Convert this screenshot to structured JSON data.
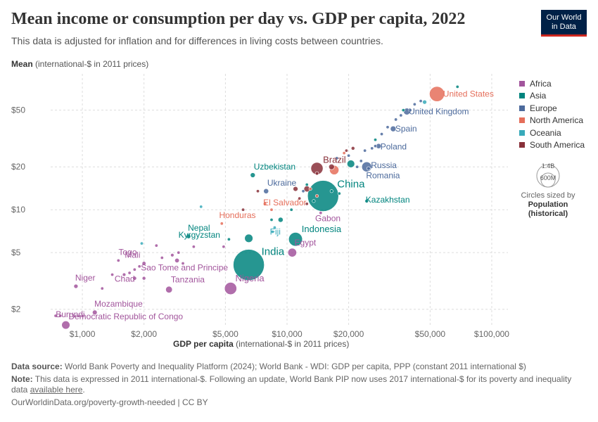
{
  "header": {
    "title": "Mean income or consumption per day vs. GDP per capita, 2022",
    "subtitle": "This data is adjusted for inflation and for differences in living costs between countries.",
    "logo_line1": "Our World",
    "logo_line2": "in Data"
  },
  "axes": {
    "y_label_bold": "Mean",
    "y_label_rest": " (international-$ in 2011 prices)",
    "x_label_bold": "GDP per capita",
    "x_label_rest": " (international-$ in 2011 prices)"
  },
  "legend": {
    "items": [
      {
        "label": "Africa",
        "color": "#a2559c"
      },
      {
        "label": "Asia",
        "color": "#00847e"
      },
      {
        "label": "Europe",
        "color": "#4c6a9c"
      },
      {
        "label": "North America",
        "color": "#e56e5a"
      },
      {
        "label": "Oceania",
        "color": "#38aaba"
      },
      {
        "label": "South America",
        "color": "#883039"
      }
    ],
    "size_big": "1.4B",
    "size_small": "600M",
    "size_note": "Circles sized by",
    "size_note_bold1": "Population",
    "size_note_bold2": "(historical)"
  },
  "footer": {
    "source_label": "Data source:",
    "source_text": " World Bank Poverty and Inequality Platform (2024); World Bank - WDI: GDP per capita, PPP (constant 2011 international $)",
    "note_label": "Note:",
    "note_text": " This data is expressed in 2011 international-$. Following an update, World Bank PIP now uses 2017 international-$ for its poverty and inequality data ",
    "note_link": "available here",
    "note_end": ".",
    "url": "OurWorldinData.org/poverty-growth-needed | CC BY"
  },
  "chart_data": {
    "type": "scatter",
    "title": "Mean income or consumption per day vs. GDP per capita, 2022",
    "xlabel": "GDP per capita (international-$ in 2011 prices)",
    "ylabel": "Mean (international-$ in 2011 prices)",
    "x_scale": "log",
    "y_scale": "log",
    "xlim": [
      700,
      120000
    ],
    "ylim": [
      1.5,
      90
    ],
    "x_ticks": [
      {
        "value": 1000,
        "label": "$1,000"
      },
      {
        "value": 2000,
        "label": "$2,000"
      },
      {
        "value": 5000,
        "label": "$5,000"
      },
      {
        "value": 10000,
        "label": "$10,000"
      },
      {
        "value": 20000,
        "label": "$20,000"
      },
      {
        "value": 50000,
        "label": "$50,000"
      },
      {
        "value": 100000,
        "label": "$100,000"
      }
    ],
    "y_ticks": [
      {
        "value": 2,
        "label": "$2"
      },
      {
        "value": 5,
        "label": "$5"
      },
      {
        "value": 10,
        "label": "$10"
      },
      {
        "value": 20,
        "label": "$20"
      },
      {
        "value": 50,
        "label": "$50"
      }
    ],
    "grid": true,
    "legend_position": "right",
    "points": [
      {
        "country": "United States",
        "region": "North America",
        "gdp": 54000,
        "mean": 65,
        "pop_m": 333
      },
      {
        "country": "United Kingdom",
        "region": "Europe",
        "gdp": 38500,
        "mean": 49,
        "pop_m": 67
      },
      {
        "country": "Spain",
        "region": "Europe",
        "gdp": 33000,
        "mean": 37,
        "pop_m": 47
      },
      {
        "country": "Poland",
        "region": "Europe",
        "gdp": 28000,
        "mean": 28,
        "pop_m": 38
      },
      {
        "country": "Russia",
        "region": "Europe",
        "gdp": 24500,
        "mean": 20,
        "pop_m": 144
      },
      {
        "country": "Romania",
        "region": "Europe",
        "gdp": 25000,
        "mean": 19.5,
        "pop_m": 19
      },
      {
        "country": "Brazil",
        "region": "South America",
        "gdp": 14000,
        "mean": 19.5,
        "pop_m": 215
      },
      {
        "country": "China",
        "region": "Asia",
        "gdp": 15000,
        "mean": 12.5,
        "pop_m": 1412
      },
      {
        "country": "Kazakhstan",
        "region": "Asia",
        "gdp": 24500,
        "mean": 11.5,
        "pop_m": 19
      },
      {
        "country": "Uzbekistan",
        "region": "Asia",
        "gdp": 6800,
        "mean": 17.5,
        "pop_m": 35
      },
      {
        "country": "Ukraine",
        "region": "Europe",
        "gdp": 7900,
        "mean": 13.5,
        "pop_m": 38
      },
      {
        "country": "El Salvador",
        "region": "North America",
        "gdp": 8400,
        "mean": 10,
        "pop_m": 6.3
      },
      {
        "country": "Honduras",
        "region": "North America",
        "gdp": 4800,
        "mean": 8,
        "pop_m": 10
      },
      {
        "country": "Gabon",
        "region": "Africa",
        "gdp": 14600,
        "mean": 9.5,
        "pop_m": 2.4
      },
      {
        "country": "Fiji",
        "region": "Oceania",
        "gdp": 8700,
        "mean": 7.5,
        "pop_m": 0.9
      },
      {
        "country": "Indonesia",
        "region": "Asia",
        "gdp": 11000,
        "mean": 6.2,
        "pop_m": 276
      },
      {
        "country": "Nepal",
        "region": "Asia",
        "gdp": 3300,
        "mean": 6.5,
        "pop_m": 30
      },
      {
        "country": "Kyrgyzstan",
        "region": "Asia",
        "gdp": 5200,
        "mean": 6.2,
        "pop_m": 7
      },
      {
        "country": "India",
        "region": "Asia",
        "gdp": 6500,
        "mean": 4.1,
        "pop_m": 1417
      },
      {
        "country": "Egypt",
        "region": "Africa",
        "gdp": 10600,
        "mean": 5,
        "pop_m": 111
      },
      {
        "country": "Sao Tome and Principe",
        "region": "Africa",
        "gdp": 3100,
        "mean": 4.2,
        "pop_m": 0.2
      },
      {
        "country": "Togo",
        "region": "Africa",
        "gdp": 1500,
        "mean": 4.4,
        "pop_m": 8.8
      },
      {
        "country": "Mali",
        "region": "Africa",
        "gdp": 2000,
        "mean": 4.2,
        "pop_m": 22
      },
      {
        "country": "Chad",
        "region": "Africa",
        "gdp": 1600,
        "mean": 3.5,
        "pop_m": 17
      },
      {
        "country": "Nigeria",
        "region": "Africa",
        "gdp": 5300,
        "mean": 2.8,
        "pop_m": 218
      },
      {
        "country": "Tanzania",
        "region": "Africa",
        "gdp": 2650,
        "mean": 2.75,
        "pop_m": 65
      },
      {
        "country": "Niger",
        "region": "Africa",
        "gdp": 930,
        "mean": 2.9,
        "pop_m": 26
      },
      {
        "country": "Mozambique",
        "region": "Africa",
        "gdp": 1150,
        "mean": 1.9,
        "pop_m": 33
      },
      {
        "country": "Burundi",
        "region": "Africa",
        "gdp": 740,
        "mean": 1.8,
        "pop_m": 13
      },
      {
        "country": "Democratic Republic of Congo",
        "region": "Africa",
        "gdp": 830,
        "mean": 1.55,
        "pop_m": 99
      },
      {
        "country": "",
        "region": "Asia",
        "gdp": 68000,
        "mean": 73,
        "pop_m": 5
      },
      {
        "country": "",
        "region": "Oceania",
        "gdp": 47000,
        "mean": 57,
        "pop_m": 26
      },
      {
        "country": "",
        "region": "Europe",
        "gdp": 45000,
        "mean": 58,
        "pop_m": 10
      },
      {
        "country": "",
        "region": "Europe",
        "gdp": 42000,
        "mean": 55,
        "pop_m": 11
      },
      {
        "country": "",
        "region": "Asia",
        "gdp": 37000,
        "mean": 50,
        "pop_m": 5
      },
      {
        "country": "",
        "region": "Europe",
        "gdp": 36000,
        "mean": 46,
        "pop_m": 9
      },
      {
        "country": "",
        "region": "Europe",
        "gdp": 40000,
        "mean": 50,
        "pop_m": 6
      },
      {
        "country": "",
        "region": "Europe",
        "gdp": 34000,
        "mean": 43,
        "pop_m": 5
      },
      {
        "country": "",
        "region": "Europe",
        "gdp": 31000,
        "mean": 38,
        "pop_m": 10
      },
      {
        "country": "",
        "region": "Europe",
        "gdp": 29000,
        "mean": 34,
        "pop_m": 2
      },
      {
        "country": "",
        "region": "Asia",
        "gdp": 27000,
        "mean": 31,
        "pop_m": 9
      },
      {
        "country": "",
        "region": "Europe",
        "gdp": 27000,
        "mean": 28,
        "pop_m": 4
      },
      {
        "country": "",
        "region": "Europe",
        "gdp": 26000,
        "mean": 27,
        "pop_m": 2
      },
      {
        "country": "",
        "region": "Europe",
        "gdp": 24000,
        "mean": 26,
        "pop_m": 1.3
      },
      {
        "country": "",
        "region": "South America",
        "gdp": 21000,
        "mean": 27,
        "pop_m": 19
      },
      {
        "country": "",
        "region": "South America",
        "gdp": 19500,
        "mean": 26,
        "pop_m": 3.4
      },
      {
        "country": "",
        "region": "Europe",
        "gdp": 20000,
        "mean": 24,
        "pop_m": 10
      },
      {
        "country": "",
        "region": "Europe",
        "gdp": 17500,
        "mean": 23,
        "pop_m": 6
      },
      {
        "country": "",
        "region": "North America",
        "gdp": 19000,
        "mean": 25,
        "pop_m": 5
      },
      {
        "country": "",
        "region": "Europe",
        "gdp": 23000,
        "mean": 22,
        "pop_m": 7
      },
      {
        "country": "",
        "region": "Europe",
        "gdp": 22000,
        "mean": 20,
        "pop_m": 8
      },
      {
        "country": "",
        "region": "Asia",
        "gdp": 20500,
        "mean": 21,
        "pop_m": 85
      },
      {
        "country": "",
        "region": "South America",
        "gdp": 16500,
        "mean": 20,
        "pop_m": 46
      },
      {
        "country": "",
        "region": "North America",
        "gdp": 17000,
        "mean": 19,
        "pop_m": 127
      },
      {
        "country": "",
        "region": "South America",
        "gdp": 14000,
        "mean": 18,
        "pop_m": 18
      },
      {
        "country": "",
        "region": "Asia",
        "gdp": 12500,
        "mean": 15,
        "pop_m": 10
      },
      {
        "country": "",
        "region": "South America",
        "gdp": 12500,
        "mean": 14,
        "pop_m": 52
      },
      {
        "country": "",
        "region": "Europe",
        "gdp": 12000,
        "mean": 13.5,
        "pop_m": 2.8
      },
      {
        "country": "",
        "region": "South America",
        "gdp": 11000,
        "mean": 14,
        "pop_m": 34
      },
      {
        "country": "",
        "region": "North America",
        "gdp": 13000,
        "mean": 14,
        "pop_m": 2.8
      },
      {
        "country": "",
        "region": "South America",
        "gdp": 11500,
        "mean": 12,
        "pop_m": 12
      },
      {
        "country": "",
        "region": "Asia",
        "gdp": 13500,
        "mean": 11.5,
        "pop_m": 10
      },
      {
        "country": "",
        "region": "North America",
        "gdp": 14000,
        "mean": 12.5,
        "pop_m": 11
      },
      {
        "country": "",
        "region": "South America",
        "gdp": 12500,
        "mean": 11,
        "pop_m": 7
      },
      {
        "country": "",
        "region": "Asia",
        "gdp": 18000,
        "mean": 13,
        "pop_m": 1.3
      },
      {
        "country": "",
        "region": "Asia",
        "gdp": 16500,
        "mean": 13.5,
        "pop_m": 4
      },
      {
        "country": "",
        "region": "Asia",
        "gdp": 10500,
        "mean": 10,
        "pop_m": 4
      },
      {
        "country": "",
        "region": "South America",
        "gdp": 7200,
        "mean": 13.5,
        "pop_m": 12
      },
      {
        "country": "",
        "region": "North America",
        "gdp": 7800,
        "mean": 11,
        "pop_m": 17
      },
      {
        "country": "",
        "region": "South America",
        "gdp": 6100,
        "mean": 10,
        "pop_m": 6.8
      },
      {
        "country": "",
        "region": "Oceania",
        "gdp": 3800,
        "mean": 10.5,
        "pop_m": 0.2
      },
      {
        "country": "",
        "region": "Asia",
        "gdp": 9300,
        "mean": 8.5,
        "pop_m": 37
      },
      {
        "country": "",
        "region": "Asia",
        "gdp": 8400,
        "mean": 8.5,
        "pop_m": 0.5
      },
      {
        "country": "",
        "region": "Oceania",
        "gdp": 8500,
        "mean": 7,
        "pop_m": 0.1
      },
      {
        "country": "",
        "region": "Asia",
        "gdp": 6500,
        "mean": 6.3,
        "pop_m": 100
      },
      {
        "country": "",
        "region": "Africa",
        "gdp": 4900,
        "mean": 5.5,
        "pop_m": 2.1
      },
      {
        "country": "",
        "region": "Oceania",
        "gdp": 1950,
        "mean": 5.8,
        "pop_m": 0.7
      },
      {
        "country": "",
        "region": "Africa",
        "gdp": 2300,
        "mean": 5.6,
        "pop_m": 0.8
      },
      {
        "country": "",
        "region": "Africa",
        "gdp": 3500,
        "mean": 5.5,
        "pop_m": 14
      },
      {
        "country": "",
        "region": "Africa",
        "gdp": 2950,
        "mean": 5,
        "pop_m": 2.4
      },
      {
        "country": "",
        "region": "Africa",
        "gdp": 2750,
        "mean": 4.8,
        "pop_m": 17
      },
      {
        "country": "",
        "region": "Africa",
        "gdp": 2450,
        "mean": 4.6,
        "pop_m": 2.2
      },
      {
        "country": "",
        "region": "Africa",
        "gdp": 2900,
        "mean": 4.4,
        "pop_m": 30
      },
      {
        "country": "",
        "region": "Africa",
        "gdp": 1900,
        "mean": 4,
        "pop_m": 13
      },
      {
        "country": "",
        "region": "Africa",
        "gdp": 1800,
        "mean": 3.8,
        "pop_m": 2.7
      },
      {
        "country": "",
        "region": "Africa",
        "gdp": 1700,
        "mean": 3.6,
        "pop_m": 8.6
      },
      {
        "country": "",
        "region": "Africa",
        "gdp": 1400,
        "mean": 3.5,
        "pop_m": 2
      },
      {
        "country": "",
        "region": "Africa",
        "gdp": 1800,
        "mean": 3.3,
        "pop_m": 22
      },
      {
        "country": "",
        "region": "Africa",
        "gdp": 2000,
        "mean": 3.3,
        "pop_m": 19
      },
      {
        "country": "",
        "region": "Africa",
        "gdp": 1250,
        "mean": 2.8,
        "pop_m": 5.5
      },
      {
        "country": "",
        "region": "Africa",
        "gdp": 780,
        "mean": 1.8,
        "pop_m": 5
      }
    ]
  }
}
